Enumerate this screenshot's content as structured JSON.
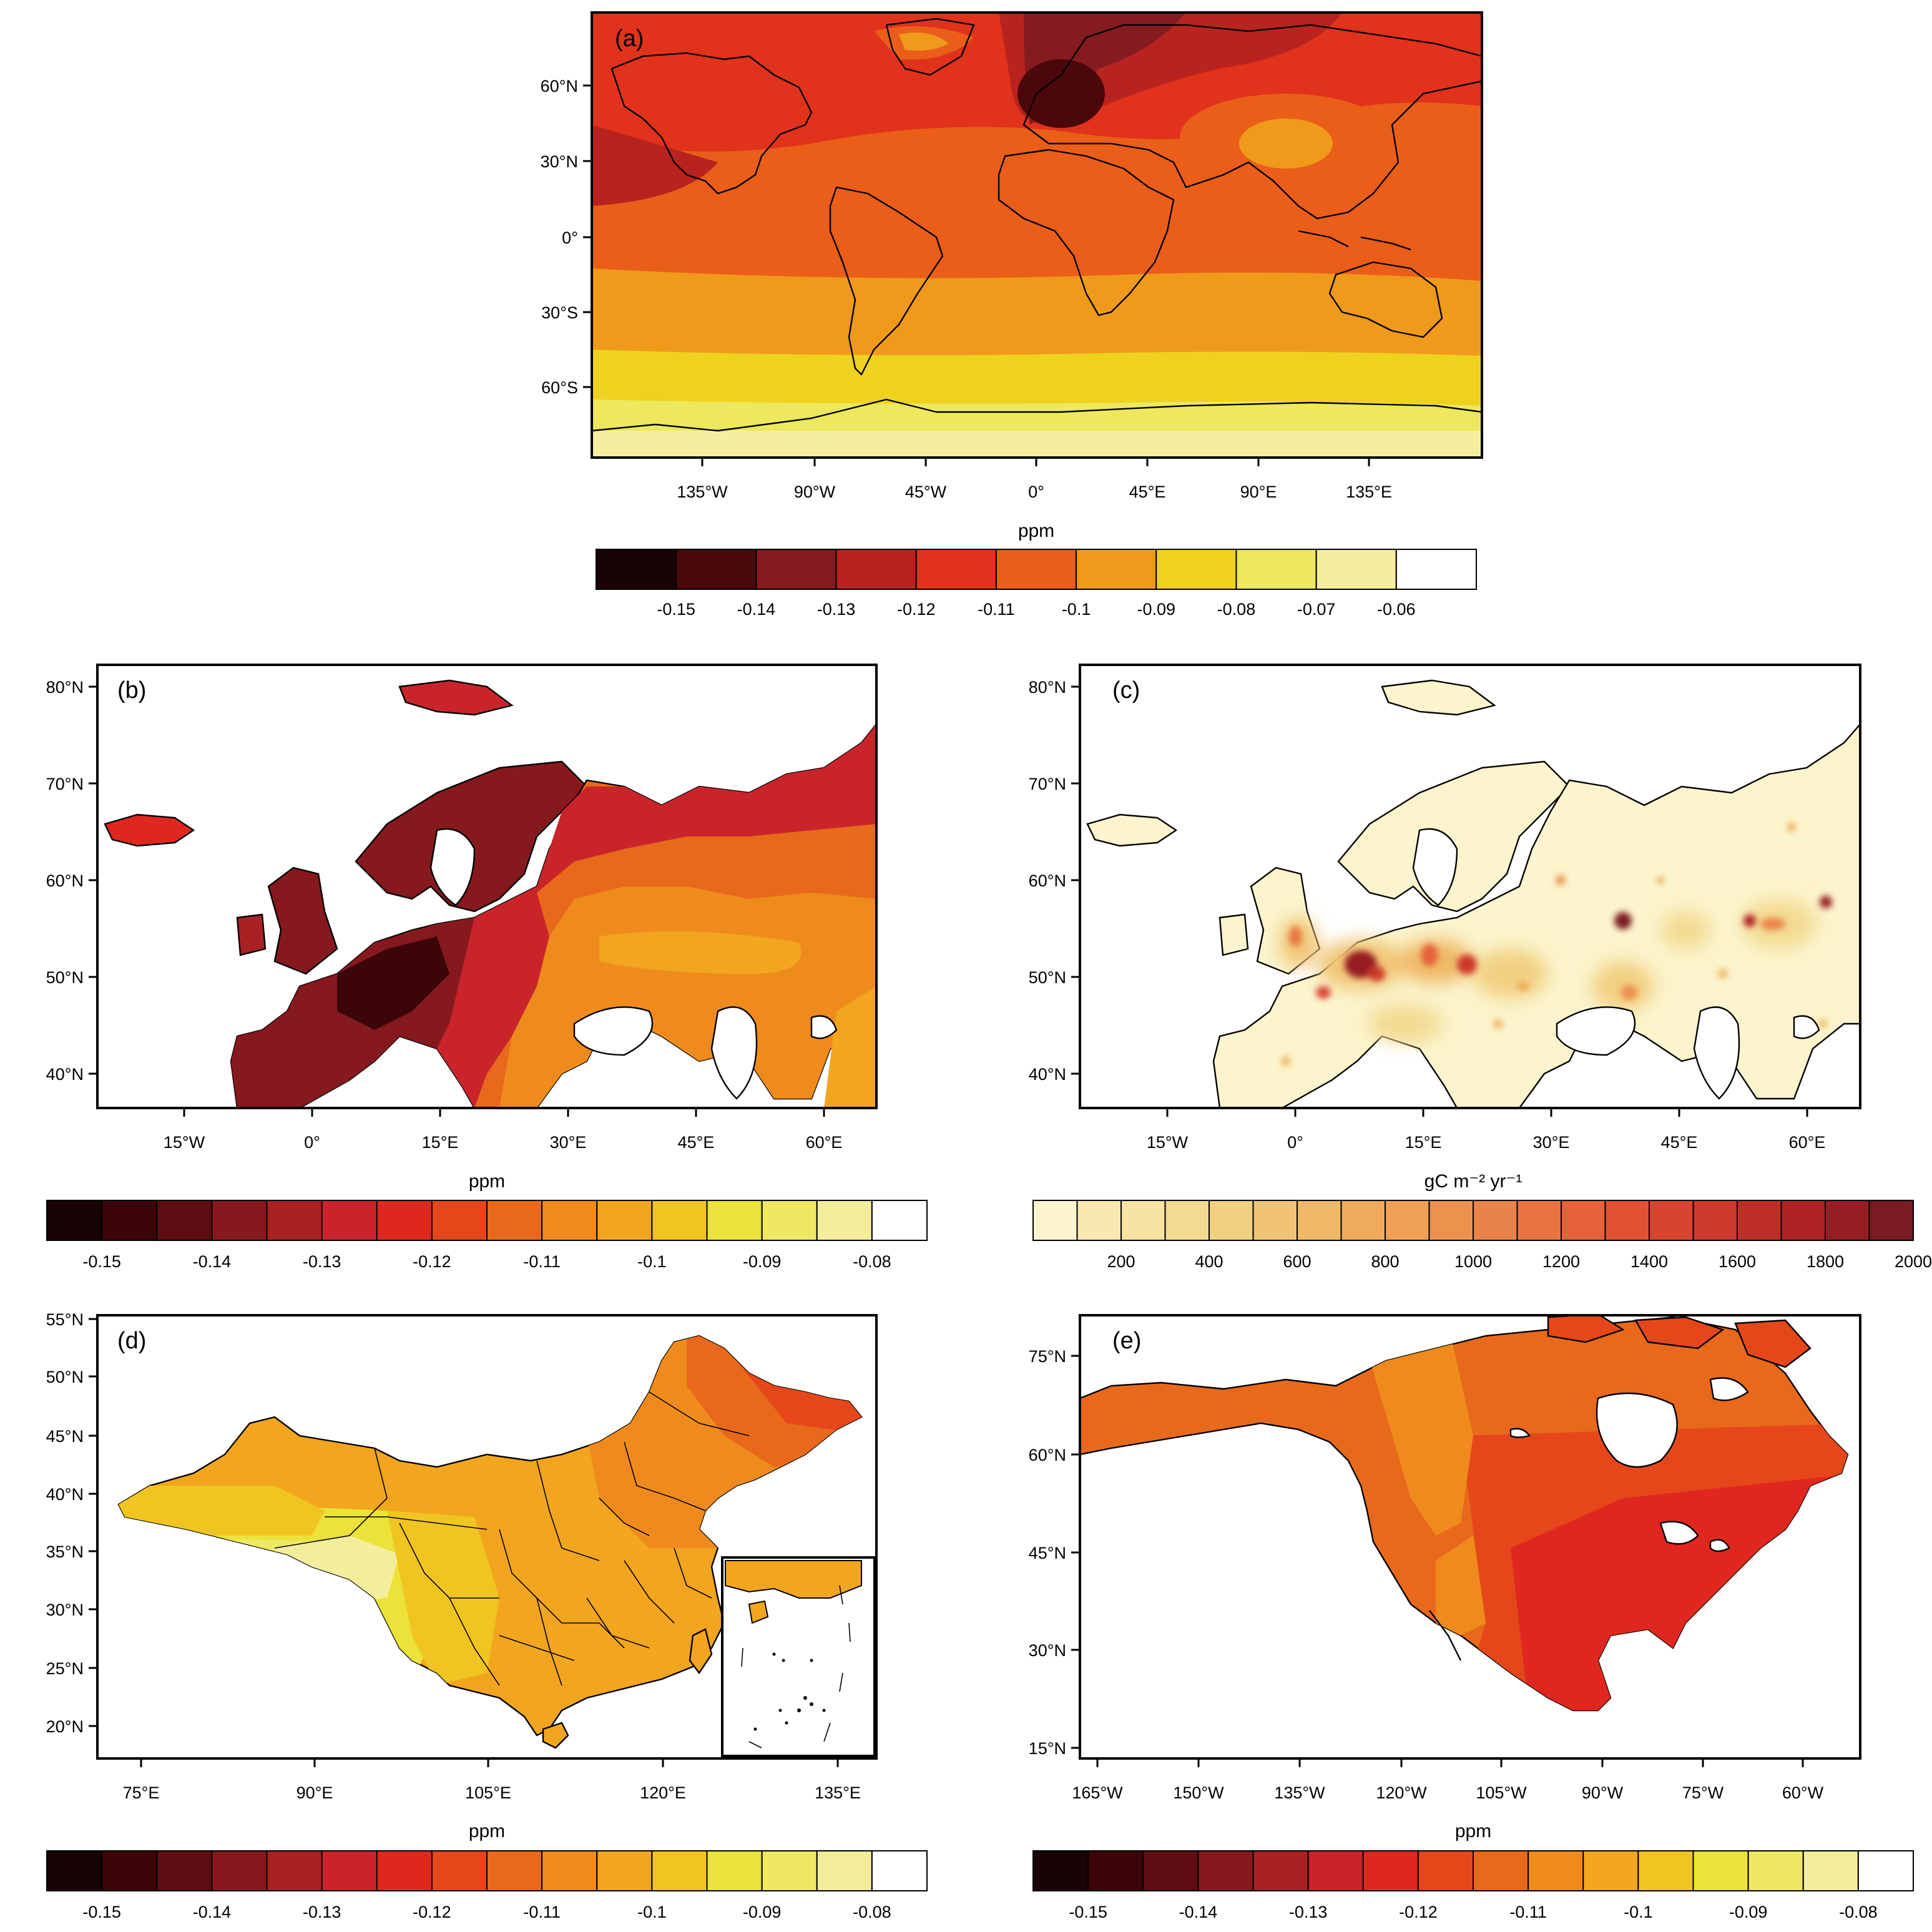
{
  "figure": {
    "panels": [
      {
        "id": "a",
        "label": "(a)",
        "lat_ticks": [
          "60°N",
          "30°N",
          "0°",
          "30°S",
          "60°S"
        ],
        "lon_ticks": [
          "135°W",
          "90°W",
          "45°W",
          "0°",
          "45°E",
          "90°E",
          "135°E"
        ],
        "colorbar": {
          "unit": "ppm",
          "colors": [
            "#1a0305",
            "#4a080c",
            "#831b1f",
            "#b8231f",
            "#e1321c",
            "#ea5e1a",
            "#f09a1b",
            "#efd21f",
            "#ede85d",
            "#f5ee9e",
            "#ffffff"
          ],
          "tick_labels": [
            "-0.15",
            "-0.14",
            "-0.13",
            "-0.12",
            "-0.11",
            "-0.1",
            "-0.09",
            "-0.08",
            "-0.07",
            "-0.06"
          ]
        }
      },
      {
        "id": "b",
        "label": "(b)",
        "lat_ticks": [
          "80°N",
          "70°N",
          "60°N",
          "50°N",
          "40°N"
        ],
        "lon_ticks": [
          "15°W",
          "0°",
          "15°E",
          "30°E",
          "45°E",
          "60°E"
        ],
        "colorbar": {
          "unit": "ppm",
          "colors": [
            "#1a0305",
            "#3c0509",
            "#5f0d12",
            "#86191e",
            "#a82224",
            "#c9242b",
            "#e0271f",
            "#e5471b",
            "#e8691b",
            "#ef8b1d",
            "#f2a51e",
            "#f1c521",
            "#ebe23a",
            "#efe864",
            "#f4ee9c",
            "#ffffff"
          ],
          "tick_labels": [
            "-0.15",
            "-0.14",
            "-0.13",
            "-0.12",
            "-0.11",
            "-0.1",
            "-0.09",
            "-0.08"
          ]
        }
      },
      {
        "id": "c",
        "label": "(c)",
        "lat_ticks": [
          "80°N",
          "70°N",
          "60°N",
          "50°N",
          "40°N"
        ],
        "lon_ticks": [
          "15°W",
          "0°",
          "15°E",
          "30°E",
          "45°E",
          "60°E"
        ],
        "colorbar": {
          "unit": "gC m⁻² yr⁻¹",
          "colors": [
            "#fbf4cc",
            "#f9e9b1",
            "#f7e3a2",
            "#f3da92",
            "#f2d082",
            "#f0c474",
            "#efb866",
            "#efaa5b",
            "#eea055",
            "#ec924e",
            "#ea8349",
            "#e87442",
            "#e5623b",
            "#e15235",
            "#d84430",
            "#cd392b",
            "#bf2e26",
            "#ad2323",
            "#961d22",
            "#7a1a22"
          ],
          "tick_labels": [
            "200",
            "400",
            "600",
            "800",
            "1000",
            "1200",
            "1400",
            "1600",
            "1800",
            "2000"
          ]
        }
      },
      {
        "id": "d",
        "label": "(d)",
        "lat_ticks": [
          "55°N",
          "50°N",
          "45°N",
          "40°N",
          "35°N",
          "30°N",
          "25°N",
          "20°N"
        ],
        "lon_ticks": [
          "75°E",
          "90°E",
          "105°E",
          "120°E",
          "135°E"
        ],
        "colorbar": {
          "unit": "ppm",
          "colors": [
            "#1a0305",
            "#3c0509",
            "#5f0d12",
            "#86191e",
            "#a82224",
            "#c9242b",
            "#e0271f",
            "#e5471b",
            "#e8691b",
            "#ef8b1d",
            "#f2a51e",
            "#f1c521",
            "#ebe23a",
            "#efe864",
            "#f4ee9c",
            "#ffffff"
          ],
          "tick_labels": [
            "-0.15",
            "-0.14",
            "-0.13",
            "-0.12",
            "-0.11",
            "-0.1",
            "-0.09",
            "-0.08"
          ]
        }
      },
      {
        "id": "e",
        "label": "(e)",
        "lat_ticks": [
          "75°N",
          "60°N",
          "45°N",
          "30°N",
          "15°N"
        ],
        "lon_ticks": [
          "165°W",
          "150°W",
          "135°W",
          "120°W",
          "105°W",
          "90°W",
          "75°W",
          "60°W"
        ],
        "colorbar": {
          "unit": "ppm",
          "colors": [
            "#1a0305",
            "#3c0509",
            "#5f0d12",
            "#86191e",
            "#a82224",
            "#c9242b",
            "#e0271f",
            "#e5471b",
            "#e8691b",
            "#ef8b1d",
            "#f2a51e",
            "#f1c521",
            "#ebe23a",
            "#efe864",
            "#f4ee9c",
            "#ffffff"
          ],
          "tick_labels": [
            "-0.15",
            "-0.14",
            "-0.13",
            "-0.12",
            "-0.11",
            "-0.1",
            "-0.09",
            "-0.08"
          ]
        }
      }
    ]
  }
}
